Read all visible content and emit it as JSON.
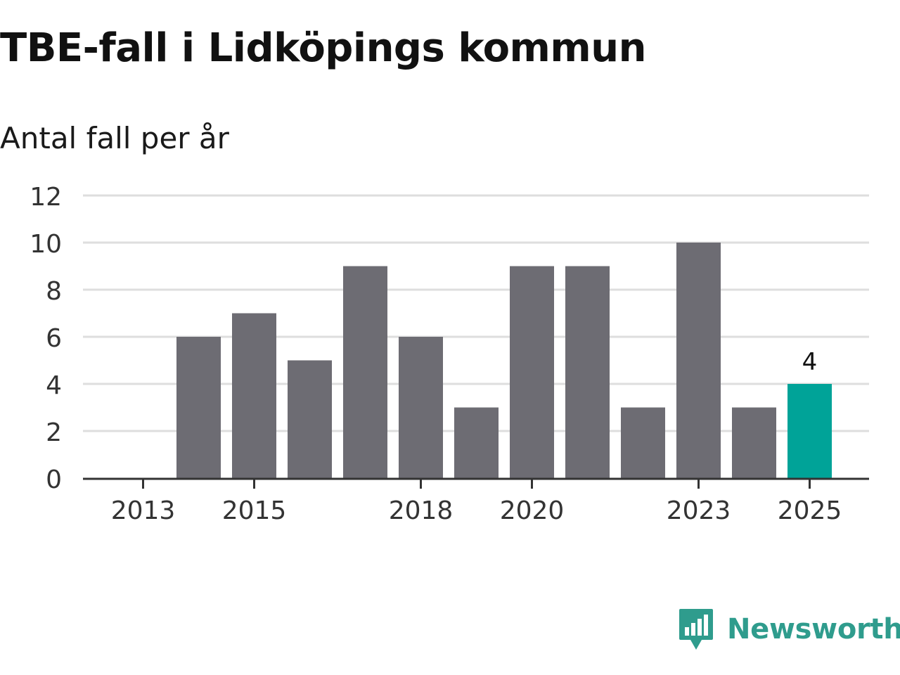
{
  "title": "TBE-fall i Lidköpings kommun",
  "brand": {
    "name": "Newsworthy",
    "color": "#2f9c8d"
  },
  "chart_data": {
    "type": "bar",
    "title": "TBE-fall i Lidköpings kommun",
    "subtitle": "Antal fall per år",
    "xlabel": "",
    "ylabel": "",
    "categories": [
      "2013",
      "2014",
      "2015",
      "2016",
      "2017",
      "2018",
      "2019",
      "2020",
      "2021",
      "2022",
      "2023",
      "2024",
      "2025"
    ],
    "values": [
      0,
      6,
      7,
      5,
      9,
      6,
      3,
      9,
      9,
      3,
      10,
      3,
      4
    ],
    "ylim": [
      0,
      12
    ],
    "yticks": [
      "0",
      "2",
      "4",
      "6",
      "8",
      "10",
      "12"
    ],
    "xtick_labels": [
      "2013",
      "2015",
      "2018",
      "2020",
      "2023",
      "2025"
    ],
    "highlight_category": "2025",
    "data_labels": [
      {
        "category": "2025",
        "text": "4"
      }
    ],
    "colors": {
      "bar": "#6d6c73",
      "highlight": "#00a398",
      "grid": "#dedede",
      "axis": "#333333",
      "text": "#333333"
    },
    "grid": true,
    "legend": "none"
  }
}
